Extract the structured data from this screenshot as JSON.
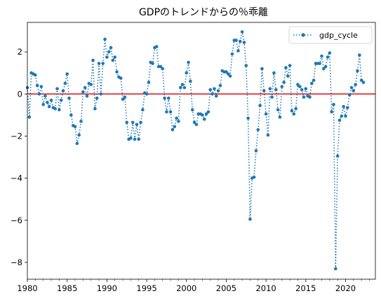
{
  "chart_data": {
    "type": "line",
    "title": "GDPのトレンドからの％乖離",
    "xlabel": "",
    "ylabel": "",
    "x_range": [
      1980.0,
      2023.75
    ],
    "ylim": [
      -8.8,
      3.4
    ],
    "x_ticks": [
      1980,
      1985,
      1990,
      1995,
      2000,
      2005,
      2010,
      2015,
      2020
    ],
    "x_tick_labels": [
      "1980",
      "1985",
      "1990",
      "1995",
      "2000",
      "2005",
      "2010",
      "2015",
      "2020"
    ],
    "y_ticks": [
      -8,
      -6,
      -4,
      -2,
      0,
      2
    ],
    "y_tick_labels": [
      "−8",
      "−6",
      "−4",
      "−2",
      "0",
      "2"
    ],
    "grid": false,
    "legend_position": "top-right",
    "reference_line": {
      "y": 0,
      "color": "#e41a1c"
    },
    "series": [
      {
        "name": "gdp_cycle",
        "color": "#1f77b4",
        "line_style": "dotted",
        "marker": "circle",
        "x_start": 1980.0,
        "x_step": 0.25,
        "values": [
          0.3,
          -1.1,
          1.0,
          0.95,
          0.9,
          0.4,
          0.0,
          0.35,
          -0.5,
          -0.1,
          -0.4,
          -0.6,
          -0.3,
          -0.65,
          -0.7,
          0.25,
          -0.75,
          -0.3,
          0.15,
          0.5,
          0.95,
          -0.2,
          -1.0,
          -1.5,
          -1.55,
          -2.35,
          -1.95,
          -1.3,
          0.1,
          0.3,
          -0.1,
          0.5,
          0.45,
          1.6,
          -0.7,
          -0.2,
          1.45,
          0.0,
          1.45,
          2.6,
          1.75,
          2.0,
          2.2,
          1.6,
          1.75,
          1.05,
          0.8,
          0.75,
          -0.25,
          -0.15,
          -1.35,
          -2.15,
          -2.1,
          -1.35,
          -2.15,
          -1.45,
          -2.15,
          -1.35,
          -0.75,
          0.05,
          0.0,
          0.55,
          1.5,
          1.45,
          2.2,
          2.25,
          1.3,
          1.3,
          1.2,
          -0.2,
          -0.85,
          -0.2,
          -0.85,
          -1.7,
          -1.55,
          -1.15,
          -1.3,
          0.3,
          0.45,
          0.3,
          1.0,
          1.5,
          0.6,
          -0.75,
          -1.35,
          -1.45,
          -0.95,
          -0.95,
          -1.0,
          -1.2,
          -0.95,
          -0.85,
          0.2,
          0.0,
          0.25,
          -0.1,
          0.15,
          0.4,
          1.1,
          1.05,
          1.05,
          0.95,
          0.85,
          1.9,
          2.55,
          2.55,
          2.05,
          2.5,
          2.95,
          2.45,
          1.35,
          -1.15,
          -5.95,
          -4.0,
          -3.95,
          -2.7,
          -1.7,
          -0.55,
          1.2,
          0.15,
          -0.95,
          -1.95,
          0.25,
          -0.15,
          1.0,
          0.2,
          -0.75,
          -1.1,
          0.35,
          0.55,
          1.25,
          0.85,
          1.35,
          -0.8,
          -0.95,
          -0.7,
          0.45,
          0.35,
          0.2,
          -0.15,
          0.25,
          -0.1,
          -0.15,
          0.5,
          0.65,
          1.45,
          1.45,
          1.45,
          1.8,
          1.2,
          1.3,
          1.75,
          1.95,
          -0.85,
          -0.5,
          -8.3,
          -2.95,
          -1.25,
          -1.05,
          -0.6,
          -1.05,
          -0.65,
          -0.05,
          0.3,
          0.15,
          0.45,
          1.1,
          1.85,
          0.65,
          0.55
        ]
      }
    ]
  }
}
